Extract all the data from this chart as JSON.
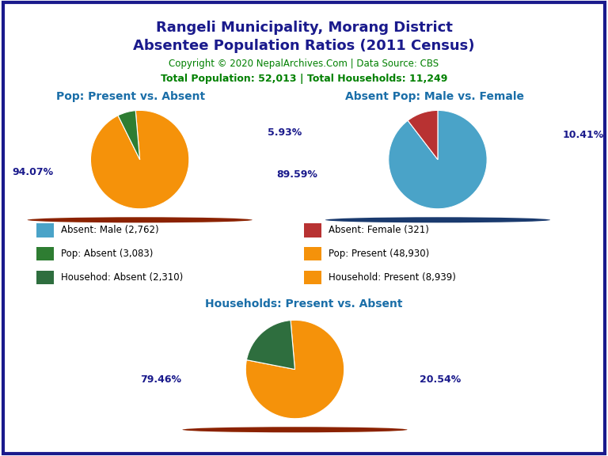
{
  "title_line1": "Rangeli Municipality, Morang District",
  "title_line2": "Absentee Population Ratios (2011 Census)",
  "title_color": "#1a1a8c",
  "copyright_text": "Copyright © 2020 NepalArchives.Com | Data Source: CBS",
  "copyright_color": "#008000",
  "stats_text": "Total Population: 52,013 | Total Households: 11,249",
  "stats_color": "#008000",
  "pie1_title": "Pop: Present vs. Absent",
  "pie1_title_color": "#1a6ea8",
  "pie1_values": [
    94.07,
    5.93
  ],
  "pie1_colors": [
    "#f5920a",
    "#2e7d32"
  ],
  "pie1_shadow_color": "#8b2200",
  "pie1_labels": [
    "94.07%",
    "5.93%"
  ],
  "pie2_title": "Absent Pop: Male vs. Female",
  "pie2_title_color": "#1a6ea8",
  "pie2_values": [
    89.59,
    10.41
  ],
  "pie2_colors": [
    "#4aa3c8",
    "#b83232"
  ],
  "pie2_shadow_color": "#1a3a6e",
  "pie2_labels": [
    "89.59%",
    "10.41%"
  ],
  "pie3_title": "Households: Present vs. Absent",
  "pie3_title_color": "#1a6ea8",
  "pie3_values": [
    79.46,
    20.54
  ],
  "pie3_colors": [
    "#f5920a",
    "#2e6e3e"
  ],
  "pie3_shadow_color": "#8b2200",
  "pie3_labels": [
    "79.46%",
    "20.54%"
  ],
  "legend_items": [
    {
      "label": "Absent: Male (2,762)",
      "color": "#4aa3c8"
    },
    {
      "label": "Absent: Female (321)",
      "color": "#b83232"
    },
    {
      "label": "Pop: Absent (3,083)",
      "color": "#2e7d32"
    },
    {
      "label": "Pop: Present (48,930)",
      "color": "#f5920a"
    },
    {
      "label": "Househod: Absent (2,310)",
      "color": "#2e6e3e"
    },
    {
      "label": "Household: Present (8,939)",
      "color": "#f5920a"
    }
  ],
  "label_color": "#1a1a8c",
  "background_color": "#ffffff",
  "border_color": "#1a1a8c"
}
